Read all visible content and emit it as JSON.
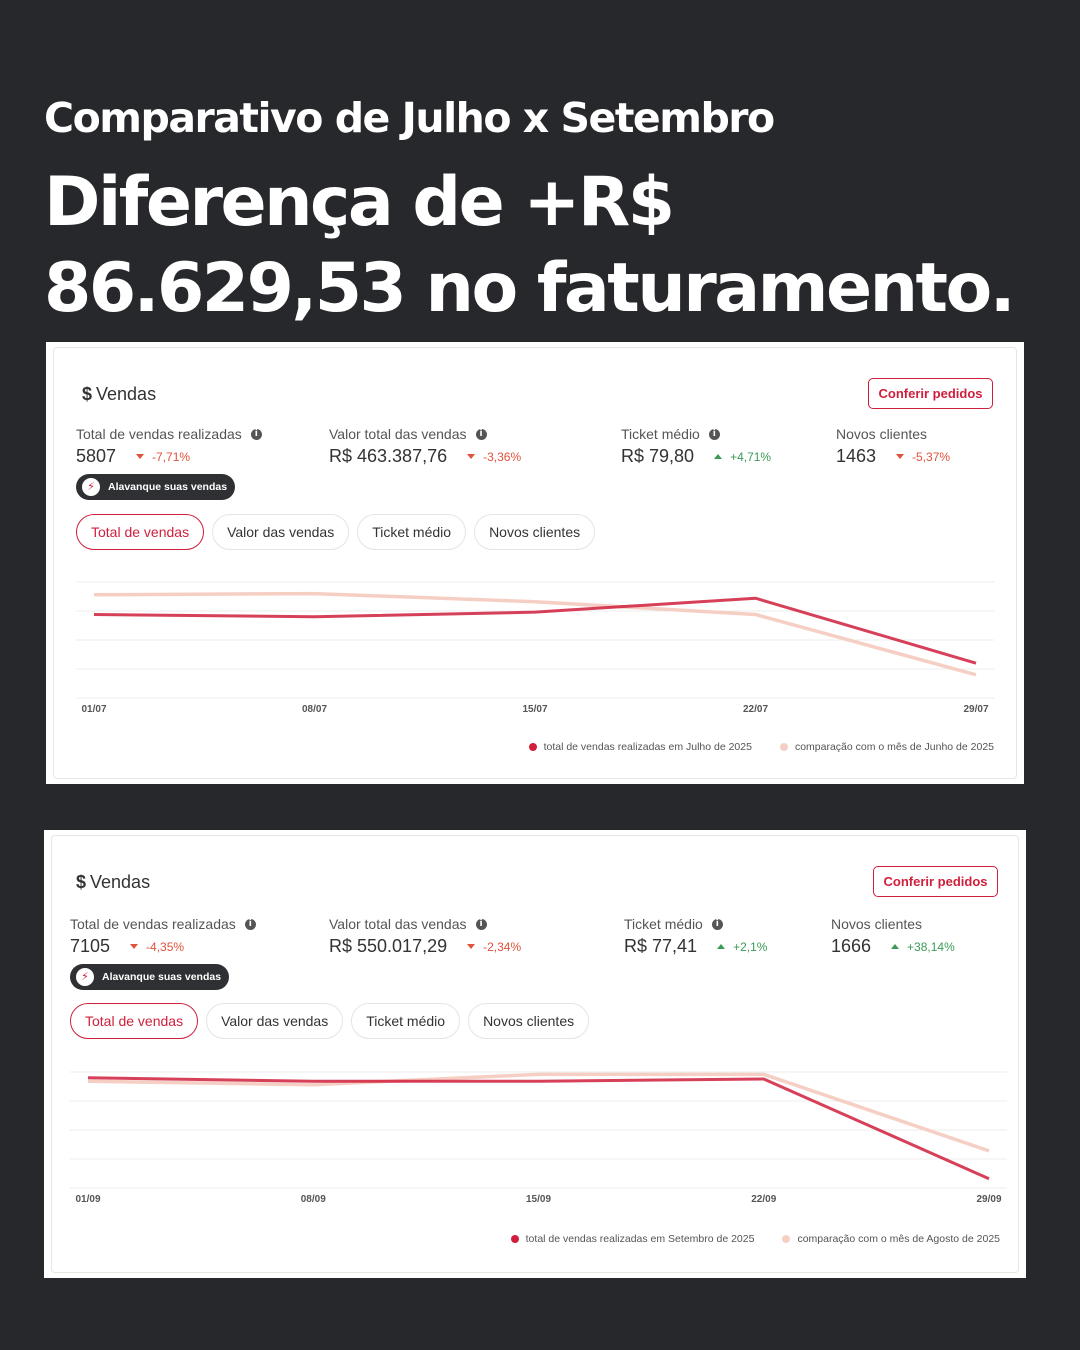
{
  "headline": {
    "subtitle": "Comparativo de Julho x Setembro",
    "title": "Diferença de +R$ 86.629,53 no faturamento."
  },
  "colors": {
    "primary": "#d01f3c",
    "comparison": "#f6cfc4",
    "down": "#e0523c",
    "up": "#3c9a57",
    "background": "#27282c"
  },
  "cards": [
    {
      "title": "Vendas",
      "currency_icon": "$",
      "button": "Conferir pedidos",
      "metrics": [
        {
          "label": "Total de vendas realizadas",
          "value": "5807",
          "delta": "-7,71%",
          "trend": "down",
          "info": true
        },
        {
          "label": "Valor total das vendas",
          "value": "R$ 463.387,76",
          "delta": "-3,36%",
          "trend": "down",
          "info": true
        },
        {
          "label": "Ticket médio",
          "value": "R$ 79,80",
          "delta": "+4,71%",
          "trend": "up",
          "info": true
        },
        {
          "label": "Novos clientes",
          "value": "1463",
          "delta": "-5,37%",
          "trend": "down",
          "info": false
        }
      ],
      "promo": "Alavanque suas vendas",
      "tabs": [
        "Total de vendas",
        "Valor das vendas",
        "Ticket médio",
        "Novos clientes"
      ],
      "active_tab": 0,
      "chart_data": {
        "type": "line",
        "x": [
          "01/07",
          "08/07",
          "15/07",
          "22/07",
          "29/07"
        ],
        "grid": true,
        "series": [
          {
            "name": "total de vendas realizadas em Julho de 2025",
            "values": [
              0.72,
              0.7,
              0.74,
              0.86,
              0.3
            ]
          },
          {
            "name": "comparação com o mês de Junho de 2025",
            "values": [
              0.89,
              0.9,
              0.83,
              0.72,
              0.2
            ]
          }
        ]
      }
    },
    {
      "title": "Vendas",
      "currency_icon": "$",
      "button": "Conferir pedidos",
      "metrics": [
        {
          "label": "Total de vendas realizadas",
          "value": "7105",
          "delta": "-4,35%",
          "trend": "down",
          "info": true
        },
        {
          "label": "Valor total das vendas",
          "value": "R$ 550.017,29",
          "delta": "-2,34%",
          "trend": "down",
          "info": true
        },
        {
          "label": "Ticket médio",
          "value": "R$ 77,41",
          "delta": "+2,1%",
          "trend": "up",
          "info": true
        },
        {
          "label": "Novos clientes",
          "value": "1666",
          "delta": "+38,14%",
          "trend": "up",
          "info": false
        }
      ],
      "promo": "Alavanque suas vendas",
      "tabs": [
        "Total de vendas",
        "Valor das vendas",
        "Ticket médio",
        "Novos clientes"
      ],
      "active_tab": 0,
      "chart_data": {
        "type": "line",
        "x": [
          "01/09",
          "08/09",
          "15/09",
          "22/09",
          "29/09"
        ],
        "grid": true,
        "series": [
          {
            "name": "total de vendas realizadas em Setembro de 2025",
            "values": [
              0.95,
              0.92,
              0.92,
              0.94,
              0.08
            ]
          },
          {
            "name": "comparação com o mês de Agosto de 2025",
            "values": [
              0.92,
              0.89,
              0.98,
              0.98,
              0.32
            ]
          }
        ]
      }
    }
  ]
}
